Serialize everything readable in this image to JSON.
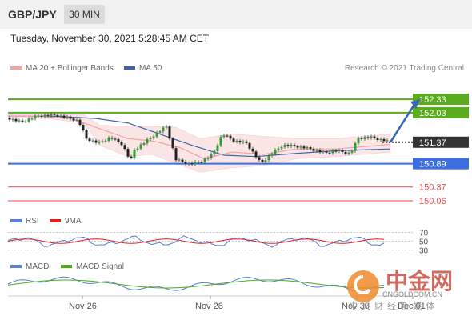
{
  "header": {
    "pair": "GBP/JPY",
    "timeframe": "30 MIN"
  },
  "timestamp": "Tuesday, November 30, 2021 5:28:45 AM CET",
  "legend": {
    "ma20": {
      "label": "MA 20 + Bollinger Bands",
      "color": "#f4a3a3"
    },
    "ma50": {
      "label": "MA 50",
      "color": "#3d64a8"
    },
    "credit": "Research © 2021 Trading Central"
  },
  "chart_data": {
    "type": "candlestick",
    "ylim": [
      149.9,
      152.85
    ],
    "levels": [
      {
        "value": "152.33",
        "color": "#5aab1e",
        "style": "solid",
        "box": true
      },
      {
        "value": "152.03",
        "color": "#5aab1e",
        "style": "solid",
        "box": true
      },
      {
        "value": "151.37",
        "color": "#333333",
        "style": "dotted",
        "box": true
      },
      {
        "value": "150.89",
        "color": "#3b6fe0",
        "style": "solid",
        "box": true
      },
      {
        "value": "150.37",
        "color": "#e84a4a",
        "style": "thin",
        "box": false
      },
      {
        "value": "150.06",
        "color": "#e84a4a",
        "style": "thin",
        "box": false
      }
    ],
    "x_ticks": [
      "Nov 26",
      "Nov 28",
      "Nov 30",
      "Dec 01"
    ],
    "price_path": [
      [
        0,
        151.92
      ],
      [
        18,
        151.82
      ],
      [
        40,
        151.96
      ],
      [
        62,
        151.98
      ],
      [
        90,
        151.85
      ],
      [
        100,
        151.45
      ],
      [
        115,
        151.35
      ],
      [
        130,
        151.48
      ],
      [
        145,
        151.32
      ],
      [
        155,
        150.95
      ],
      [
        160,
        151.2
      ],
      [
        175,
        151.4
      ],
      [
        190,
        151.6
      ],
      [
        200,
        151.72
      ],
      [
        212,
        150.98
      ],
      [
        230,
        150.88
      ],
      [
        245,
        150.95
      ],
      [
        258,
        151.1
      ],
      [
        270,
        151.55
      ],
      [
        285,
        151.4
      ],
      [
        300,
        151.35
      ],
      [
        318,
        150.9
      ],
      [
        332,
        151.12
      ],
      [
        345,
        151.3
      ],
      [
        362,
        151.28
      ],
      [
        380,
        151.22
      ],
      [
        398,
        151.13
      ],
      [
        412,
        151.18
      ],
      [
        430,
        151.12
      ],
      [
        440,
        151.46
      ],
      [
        455,
        151.48
      ],
      [
        470,
        151.42
      ],
      [
        478,
        151.38
      ]
    ],
    "ma50_path": [
      [
        0,
        151.95
      ],
      [
        60,
        151.95
      ],
      [
        110,
        151.9
      ],
      [
        150,
        151.8
      ],
      [
        190,
        151.55
      ],
      [
        230,
        151.3
      ],
      [
        270,
        151.08
      ],
      [
        310,
        151.05
      ],
      [
        360,
        151.12
      ],
      [
        410,
        151.18
      ],
      [
        478,
        151.22
      ]
    ],
    "ma20_path": [
      [
        0,
        151.95
      ],
      [
        40,
        151.95
      ],
      [
        80,
        151.9
      ],
      [
        110,
        151.7
      ],
      [
        150,
        151.45
      ],
      [
        180,
        151.4
      ],
      [
        215,
        151.25
      ],
      [
        245,
        151.0
      ],
      [
        280,
        151.15
      ],
      [
        320,
        151.1
      ],
      [
        360,
        151.22
      ],
      [
        410,
        151.22
      ],
      [
        478,
        151.32
      ]
    ],
    "bb_upper_path": [
      [
        0,
        151.98
      ],
      [
        50,
        152.0
      ],
      [
        95,
        151.98
      ],
      [
        115,
        151.75
      ],
      [
        150,
        151.72
      ],
      [
        180,
        151.72
      ],
      [
        210,
        151.7
      ],
      [
        240,
        151.45
      ],
      [
        280,
        151.55
      ],
      [
        320,
        151.5
      ],
      [
        360,
        151.45
      ],
      [
        410,
        151.45
      ],
      [
        478,
        151.55
      ]
    ],
    "bb_lower_path": [
      [
        0,
        151.92
      ],
      [
        50,
        151.9
      ],
      [
        95,
        151.8
      ],
      [
        115,
        151.3
      ],
      [
        150,
        151.05
      ],
      [
        180,
        151.1
      ],
      [
        210,
        150.9
      ],
      [
        240,
        150.7
      ],
      [
        280,
        150.8
      ],
      [
        320,
        150.85
      ],
      [
        360,
        151.0
      ],
      [
        410,
        151.05
      ],
      [
        478,
        151.15
      ]
    ],
    "forecast": [
      [
        478,
        151.37
      ],
      [
        515,
        152.33
      ]
    ],
    "rsi": {
      "legend": [
        {
          "label": "RSI",
          "color": "#5b7fd4"
        },
        {
          "label": "9MA",
          "color": "#e02020"
        }
      ],
      "ticks": [
        "70",
        "50",
        "30"
      ]
    },
    "macd": {
      "legend": [
        {
          "label": "MACD",
          "color": "#5b7fd4"
        },
        {
          "label": "MACD Signal",
          "color": "#4caa1a"
        }
      ]
    }
  },
  "watermark": {
    "brand": "中金网",
    "url": "CNGOLDCOM.CN",
    "sub": "中 文 财 经 新 媒 体"
  }
}
